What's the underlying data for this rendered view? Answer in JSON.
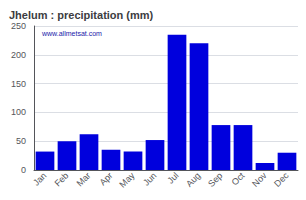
{
  "chart_data": {
    "type": "bar",
    "title": "Jhelum : precipitation (mm)",
    "categories": [
      "Jan",
      "Feb",
      "Mar",
      "Apr",
      "May",
      "Jun",
      "Jul",
      "Aug",
      "Sep",
      "Oct",
      "Nov",
      "Dec"
    ],
    "values": [
      32,
      50,
      62,
      35,
      32,
      52,
      235,
      220,
      78,
      78,
      12,
      30
    ],
    "color": "#0000dd",
    "ylim": [
      0,
      250
    ],
    "yticks": [
      0,
      50,
      100,
      150,
      200,
      250
    ],
    "grid": true,
    "annotations": [
      "www.allmetsat.com"
    ]
  }
}
